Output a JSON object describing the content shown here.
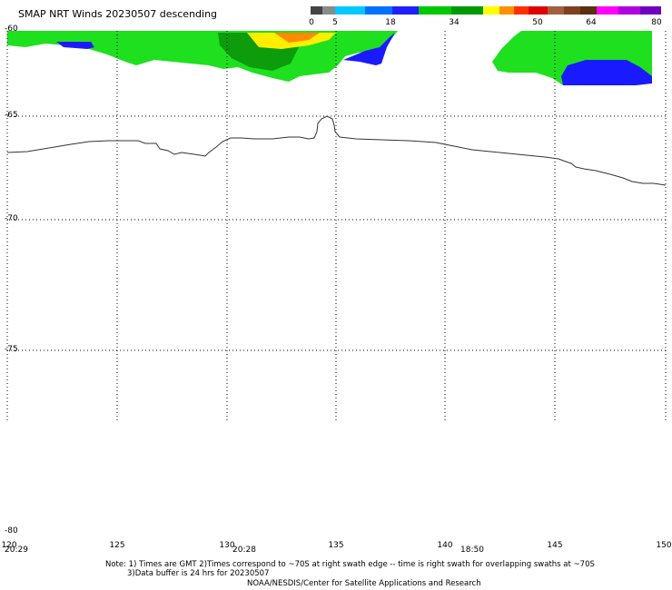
{
  "header": {
    "title": "SMAP NRT Winds  20230507 descending"
  },
  "colorbar": {
    "labels": [
      "0",
      "5",
      "18",
      "34",
      "50",
      "64",
      "80"
    ],
    "colors": [
      "#444444",
      "#8a8a8a",
      "#00c8ff",
      "#0070ff",
      "#2020ff",
      "#00c800",
      "#009a00",
      "#ffff00",
      "#ff9000",
      "#ff3000",
      "#e00000",
      "#a06040",
      "#804020",
      "#5a3010",
      "#ff00ff",
      "#b000e0",
      "#7000c0"
    ]
  },
  "map": {
    "lat_labels": [
      "-60",
      "-65",
      "-70",
      "-75",
      "-80"
    ],
    "lon_labels": [
      "120",
      "125",
      "130",
      "135",
      "140",
      "145",
      "150"
    ],
    "time_labels": [
      "20:29",
      "20:28",
      "18:50"
    ],
    "wind_colors": {
      "blue": "#1a1aff",
      "green": "#1fe01f",
      "dark_green": "#0c9c0c",
      "yellow": "#ffee00",
      "orange": "#ff8a00"
    }
  },
  "footer": {
    "note1": "Note: 1) Times are GMT 2)Times correspond to ~70S at right swath edge -- time is right swath for overlapping swaths at ~70S",
    "note2": "3)Data buffer is 24 hrs for 20230507",
    "credit": "NOAA/NESDIS/Center for Satellite Applications and Research"
  }
}
